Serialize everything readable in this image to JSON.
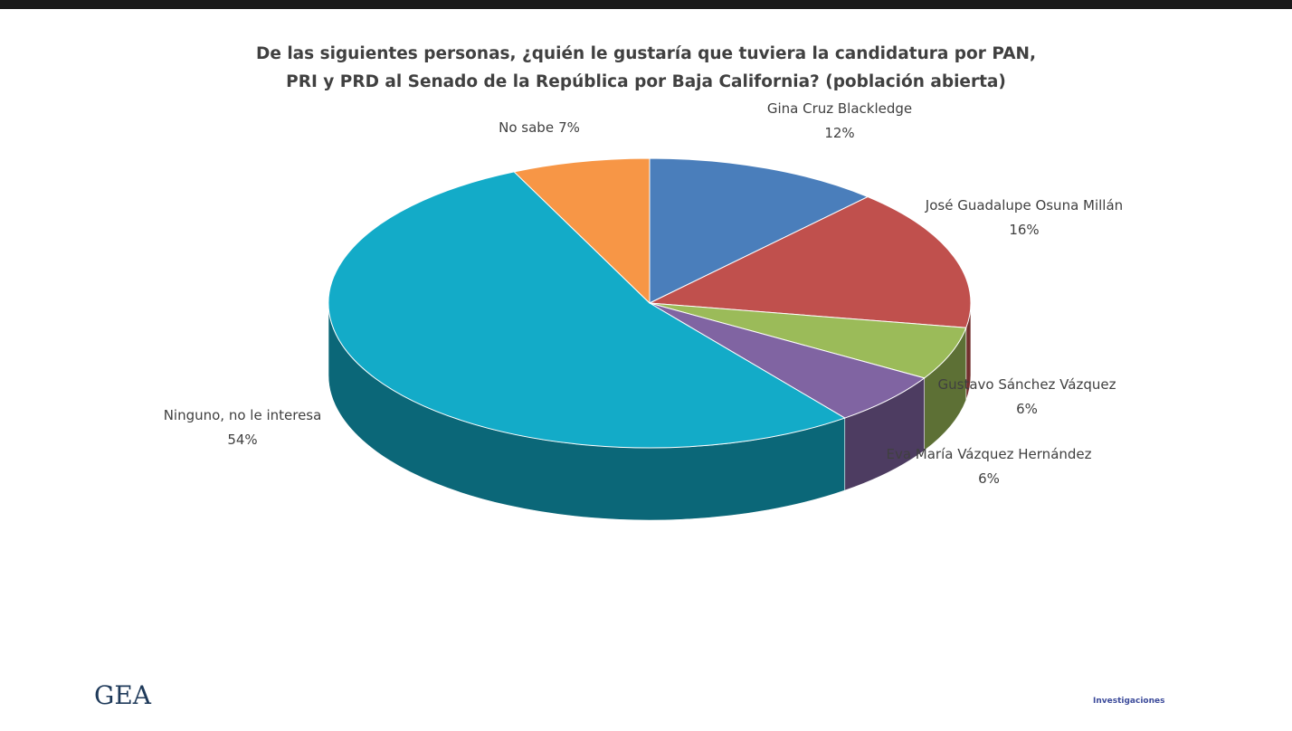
{
  "chart_data": {
    "type": "pie3d",
    "title": "De las siguientes personas, ¿quién le gustaría que tuviera la candidatura por PAN, PRI y PRD al Senado de la República por Baja California? (población abierta)",
    "categories": [
      "Gina Cruz Blackledge",
      "José Guadalupe Osuna Millán",
      "Gustavo Sánchez Vázquez",
      "Eva María Vázquez Hernández",
      "Ninguno, no le interesa",
      "No sabe"
    ],
    "values": [
      12,
      16,
      6,
      6,
      54,
      7
    ],
    "value_labels": [
      "12%",
      "16%",
      "6%",
      "6%",
      "54%",
      "7%"
    ],
    "colors": [
      "#4a7ebb",
      "#c0504d",
      "#9bbb59",
      "#8064a2",
      "#13abc8",
      "#f79646"
    ]
  },
  "logos": {
    "left": "GEA",
    "right": "Investigaciones"
  }
}
